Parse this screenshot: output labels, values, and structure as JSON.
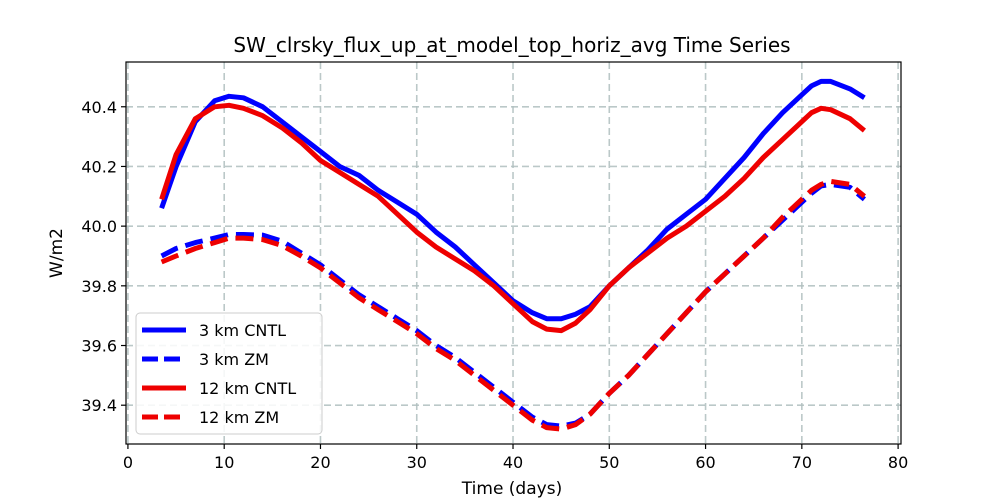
{
  "chart_data": {
    "type": "line",
    "title": "SW_clrsky_flux_up_at_model_top_horiz_avg Time Series",
    "xlabel": "Time (days)",
    "ylabel": "W/m2",
    "xlim": [
      -0.2,
      80.3
    ],
    "ylim": [
      39.27,
      40.55
    ],
    "xticks": [
      0,
      10,
      20,
      30,
      40,
      50,
      60,
      70,
      80
    ],
    "yticks": [
      39.4,
      39.6,
      39.8,
      40.0,
      40.2,
      40.4
    ],
    "ytick_labels": [
      "39.4",
      "39.6",
      "39.8",
      "40.0",
      "40.2",
      "40.4"
    ],
    "grid": true,
    "legend_position": "lower-left",
    "series": [
      {
        "name": "3 km CNTL",
        "color": "#0000ff",
        "style": "solid",
        "x": [
          3.5,
          5,
          7,
          9,
          10.5,
          12,
          14,
          16,
          18,
          20,
          22,
          24,
          26,
          28,
          30,
          32,
          34,
          36,
          38,
          40,
          42,
          43.5,
          45,
          46.5,
          48,
          50,
          52,
          54,
          56,
          58,
          60,
          62,
          64,
          66,
          68,
          70,
          71,
          72,
          73,
          75,
          76.5
        ],
        "y": [
          40.06,
          40.2,
          40.35,
          40.42,
          40.435,
          40.43,
          40.4,
          40.35,
          40.3,
          40.25,
          40.2,
          40.17,
          40.12,
          40.08,
          40.04,
          39.98,
          39.93,
          39.87,
          39.81,
          39.75,
          39.71,
          39.69,
          39.69,
          39.705,
          39.73,
          39.8,
          39.86,
          39.92,
          39.99,
          40.04,
          40.09,
          40.16,
          40.23,
          40.31,
          40.38,
          40.44,
          40.47,
          40.485,
          40.485,
          40.46,
          40.43
        ]
      },
      {
        "name": "3 km ZM",
        "color": "#0000ff",
        "style": "dashed",
        "x": [
          3.5,
          5,
          7,
          9,
          10.5,
          12,
          14,
          16,
          18,
          20,
          22,
          24,
          26,
          28,
          30,
          32,
          34,
          36,
          38,
          40,
          42,
          43.5,
          45,
          46.5,
          48,
          50,
          52,
          54,
          56,
          58,
          60,
          62,
          64,
          66,
          68,
          70,
          71,
          72,
          73,
          75,
          76.5
        ],
        "y": [
          39.9,
          39.925,
          39.945,
          39.96,
          39.972,
          39.972,
          39.97,
          39.95,
          39.91,
          39.87,
          39.82,
          39.77,
          39.73,
          39.69,
          39.65,
          39.6,
          39.56,
          39.51,
          39.46,
          39.41,
          39.36,
          39.335,
          39.33,
          39.34,
          39.37,
          39.44,
          39.5,
          39.57,
          39.64,
          39.71,
          39.78,
          39.84,
          39.9,
          39.96,
          40.02,
          40.08,
          40.11,
          40.135,
          40.14,
          40.13,
          40.09
        ]
      },
      {
        "name": "12 km CNTL",
        "color": "#ee0000",
        "style": "solid",
        "x": [
          3.5,
          5,
          7,
          9,
          10.5,
          12,
          14,
          16,
          18,
          20,
          22,
          24,
          26,
          28,
          30,
          32,
          34,
          36,
          38,
          40,
          42,
          43.5,
          45,
          46.5,
          48,
          50,
          52,
          54,
          56,
          58,
          60,
          62,
          64,
          66,
          68,
          70,
          71,
          72,
          73,
          75,
          76.5
        ],
        "y": [
          40.09,
          40.24,
          40.36,
          40.4,
          40.405,
          40.395,
          40.37,
          40.33,
          40.28,
          40.22,
          40.18,
          40.14,
          40.1,
          40.04,
          39.98,
          39.93,
          39.89,
          39.85,
          39.8,
          39.74,
          39.68,
          39.655,
          39.65,
          39.675,
          39.72,
          39.8,
          39.86,
          39.91,
          39.96,
          40.0,
          40.05,
          40.1,
          40.16,
          40.23,
          40.29,
          40.35,
          40.38,
          40.395,
          40.39,
          40.36,
          40.32
        ]
      },
      {
        "name": "12 km ZM",
        "color": "#ee0000",
        "style": "dashed",
        "x": [
          3.5,
          5,
          7,
          9,
          10.5,
          12,
          14,
          16,
          18,
          20,
          22,
          24,
          26,
          28,
          30,
          32,
          34,
          36,
          38,
          40,
          42,
          43.5,
          45,
          46.5,
          48,
          50,
          52,
          54,
          56,
          58,
          60,
          62,
          64,
          66,
          68,
          70,
          71,
          72,
          73,
          75,
          76.5
        ],
        "y": [
          39.88,
          39.9,
          39.925,
          39.945,
          39.96,
          39.96,
          39.955,
          39.935,
          39.9,
          39.86,
          39.81,
          39.76,
          39.72,
          39.68,
          39.64,
          39.59,
          39.55,
          39.5,
          39.45,
          39.4,
          39.35,
          39.325,
          39.32,
          39.335,
          39.37,
          39.44,
          39.5,
          39.57,
          39.64,
          39.71,
          39.78,
          39.84,
          39.9,
          39.96,
          40.03,
          40.09,
          40.12,
          40.14,
          40.15,
          40.14,
          40.1
        ]
      }
    ]
  }
}
